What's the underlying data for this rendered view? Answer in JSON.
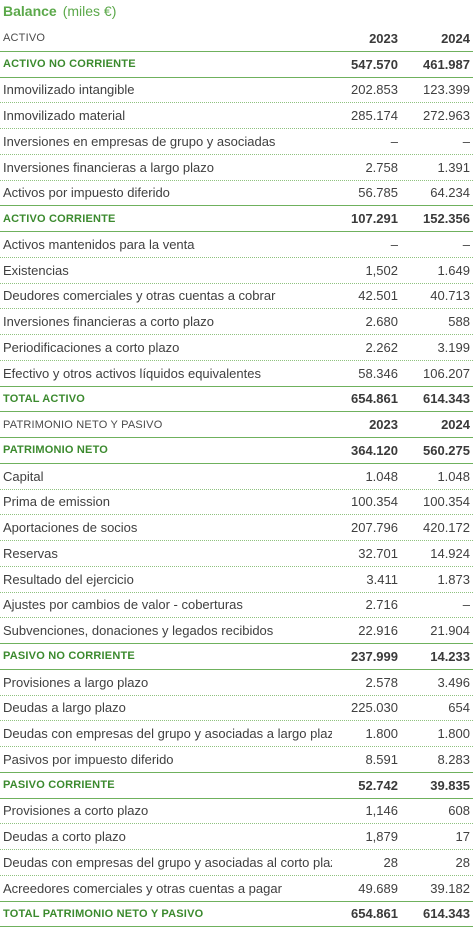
{
  "title": {
    "bold": "Balance",
    "sub": "(miles €)"
  },
  "rows": [
    {
      "type": "hdr",
      "label": "ACTIVO",
      "v1": "2023",
      "v2": "2024"
    },
    {
      "type": "sec",
      "label": "ACTIVO NO CORRIENTE",
      "v1": "547.570",
      "v2": "461.987"
    },
    {
      "type": "item",
      "label": "Inmovilizado intangible",
      "v1": "202.853",
      "v2": "123.399"
    },
    {
      "type": "item",
      "label": "Inmovilizado material",
      "v1": "285.174",
      "v2": "272.963"
    },
    {
      "type": "item",
      "label": "Inversiones en empresas de grupo y asociadas",
      "v1": "–",
      "v2": "–"
    },
    {
      "type": "item",
      "label": "Inversiones financieras a largo plazo",
      "v1": "2.758",
      "v2": "1.391"
    },
    {
      "type": "item",
      "label": "Activos por impuesto diferido",
      "v1": "56.785",
      "v2": "64.234"
    },
    {
      "type": "sec",
      "label": "ACTIVO CORRIENTE",
      "v1": "107.291",
      "v2": "152.356"
    },
    {
      "type": "item",
      "label": "Activos mantenidos para la venta",
      "v1": "–",
      "v2": "–"
    },
    {
      "type": "item",
      "label": "Existencias",
      "v1": "1,502",
      "v2": "1.649"
    },
    {
      "type": "item",
      "label": "Deudores comerciales y otras cuentas a cobrar",
      "v1": "42.501",
      "v2": "40.713"
    },
    {
      "type": "item",
      "label": "Inversiones financieras a corto plazo",
      "v1": "2.680",
      "v2": "588"
    },
    {
      "type": "item",
      "label": "Periodificaciones a corto plazo",
      "v1": "2.262",
      "v2": "3.199"
    },
    {
      "type": "item",
      "label": "Efectivo y otros activos líquidos equivalentes",
      "v1": "58.346",
      "v2": "106.207"
    },
    {
      "type": "sec",
      "label": "TOTAL ACTIVO",
      "v1": "654.861",
      "v2": "614.343"
    },
    {
      "type": "hdr",
      "label": "PATRIMONIO NETO Y PASIVO",
      "v1": "2023",
      "v2": "2024"
    },
    {
      "type": "sec",
      "label": "PATRIMONIO NETO",
      "v1": "364.120",
      "v2": "560.275"
    },
    {
      "type": "item",
      "label": "Capital",
      "v1": "1.048",
      "v2": "1.048"
    },
    {
      "type": "item",
      "label": "Prima de emission",
      "v1": "100.354",
      "v2": "100.354"
    },
    {
      "type": "item",
      "label": "Aportaciones de socios",
      "v1": "207.796",
      "v2": "420.172"
    },
    {
      "type": "item",
      "label": "Reservas",
      "v1": "32.701",
      "v2": "14.924"
    },
    {
      "type": "item",
      "label": "Resultado del ejercicio",
      "v1": "3.411",
      "v2": "1.873"
    },
    {
      "type": "item",
      "label": "Ajustes por cambios de valor - coberturas",
      "v1": "2.716",
      "v2": "–"
    },
    {
      "type": "item",
      "label": "Subvenciones, donaciones y legados recibidos",
      "v1": "22.916",
      "v2": "21.904"
    },
    {
      "type": "sec",
      "label": "PASIVO NO CORRIENTE",
      "v1": "237.999",
      "v2": "14.233"
    },
    {
      "type": "item",
      "label": "Provisiones a largo plazo",
      "v1": "2.578",
      "v2": "3.496"
    },
    {
      "type": "item",
      "label": "Deudas a largo plazo",
      "v1": "225.030",
      "v2": "654"
    },
    {
      "type": "item",
      "label": "Deudas con empresas del grupo y asociadas a largo plazo",
      "v1": "1.800",
      "v2": "1.800"
    },
    {
      "type": "item",
      "label": "Pasivos por impuesto diferido",
      "v1": "8.591",
      "v2": "8.283"
    },
    {
      "type": "sec",
      "label": "PASIVO CORRIENTE",
      "v1": "52.742",
      "v2": "39.835"
    },
    {
      "type": "item",
      "label": "Provisiones a corto plazo",
      "v1": "1,146",
      "v2": "608"
    },
    {
      "type": "item",
      "label": "Deudas a corto plazo",
      "v1": "1,879",
      "v2": "17"
    },
    {
      "type": "item",
      "label": "Deudas con empresas del grupo y asociadas al corto plazo",
      "v1": "28",
      "v2": "28"
    },
    {
      "type": "item",
      "label": "Acreedores comerciales y otras cuentas a pagar",
      "v1": "49.689",
      "v2": "39.182"
    },
    {
      "type": "sec",
      "label": "TOTAL PATRIMONIO NETO Y PASIVO",
      "v1": "654.861",
      "v2": "614.343"
    }
  ]
}
